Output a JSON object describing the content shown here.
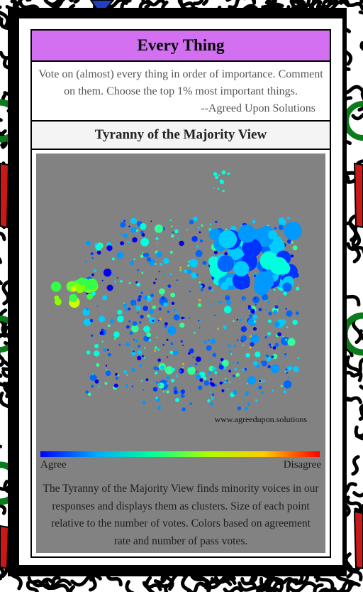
{
  "card": {
    "title": "Every Thing",
    "intro_text": "Vote on (almost) every thing in order of importance. Comment on them. Choose the top 1% most important things.",
    "attribution": "--Agreed Upon Solutions",
    "view_title": "Tyranny of the Majority View"
  },
  "visualization": {
    "watermark": "www.agreedupon.solutions",
    "scale_left_label": "Agree",
    "scale_right_label": "Disagree",
    "caption": "The Tyranny of the Majority View finds minority voices in our responses and displays them as clusters. Size of each point relative to the number of votes. Colors based on agreement rate and number of pass votes.",
    "scale_colors": [
      "#0000ff",
      "#00aaff",
      "#00ff99",
      "#aaff00",
      "#ffcc00",
      "#ff0000"
    ],
    "background_color": "#828282",
    "title_bar_color": "#d36ff1"
  }
}
